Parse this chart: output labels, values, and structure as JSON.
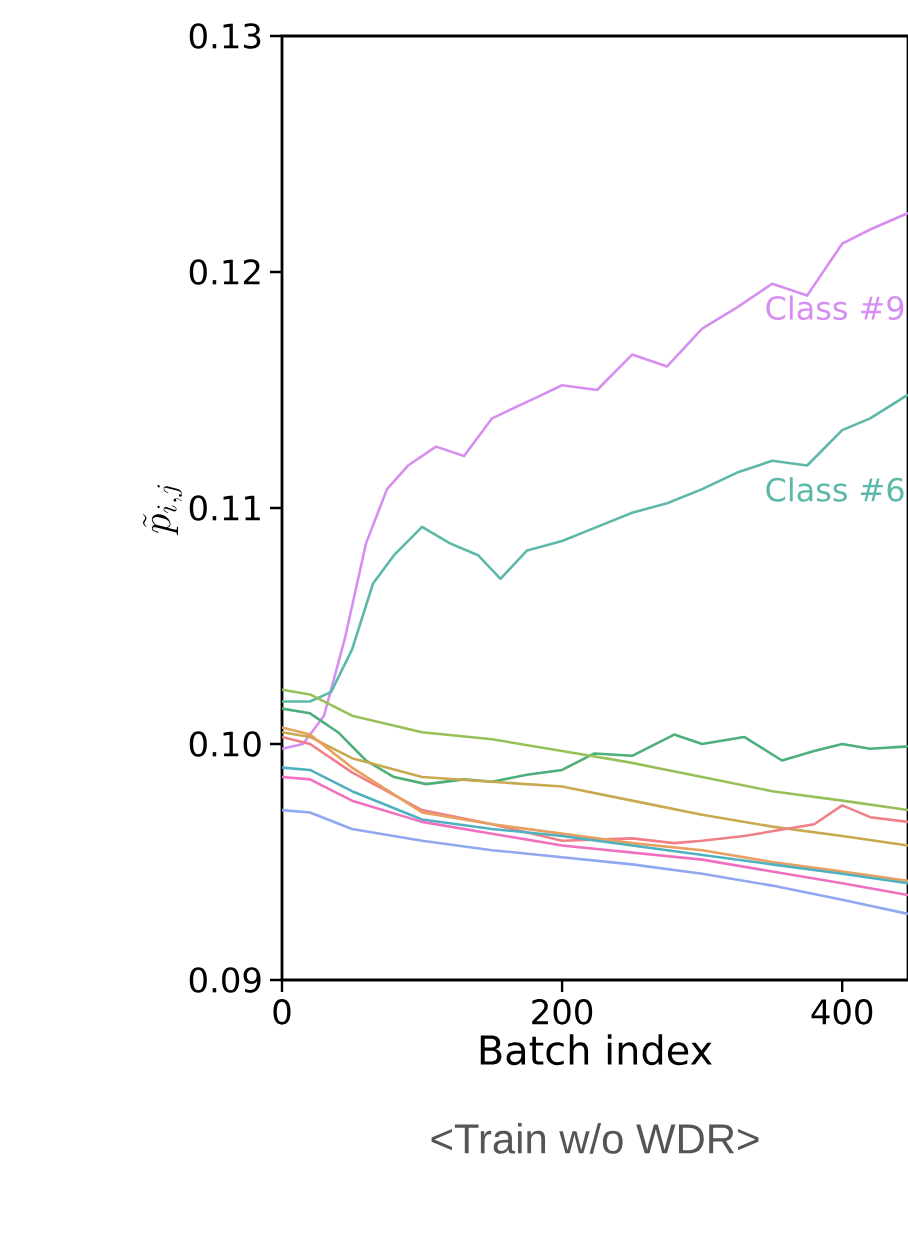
{
  "chart_data": {
    "type": "line",
    "xlabel": "Batch index",
    "ylabel": "\\tilde{p}_{i,j}",
    "annotations": [
      "<Train w/o WDR>"
    ],
    "xlim": [
      0,
      447
    ],
    "ylim": [
      0.09,
      0.13
    ],
    "xticks": [
      0,
      200,
      400
    ],
    "yticks": [
      {
        "value": 0.09,
        "label": "0.09"
      },
      {
        "value": 0.1,
        "label": "0.10"
      },
      {
        "value": 0.11,
        "label": "0.11"
      },
      {
        "value": 0.12,
        "label": "0.12"
      },
      {
        "value": 0.13,
        "label": "0.13"
      }
    ],
    "grid": false,
    "legend": false,
    "marker": "none",
    "line_style": "solid",
    "series": [
      {
        "name": "Class #9",
        "color": "#d68ff0",
        "x": [
          0,
          15,
          30,
          45,
          60,
          75,
          90,
          110,
          130,
          150,
          175,
          200,
          225,
          250,
          275,
          300,
          325,
          350,
          375,
          400,
          420,
          447
        ],
        "values": [
          0.0998,
          0.1,
          0.1012,
          0.1045,
          0.1085,
          0.1108,
          0.1118,
          0.1126,
          0.1122,
          0.1138,
          0.1145,
          0.1152,
          0.115,
          0.1165,
          0.116,
          0.1176,
          0.1185,
          0.1195,
          0.119,
          0.1212,
          0.1218,
          0.1225
        ]
      },
      {
        "name": "Class #6",
        "color": "#5cb8a8",
        "x": [
          0,
          20,
          35,
          50,
          65,
          80,
          100,
          120,
          140,
          156,
          175,
          200,
          225,
          250,
          275,
          300,
          325,
          350,
          375,
          400,
          420,
          447
        ],
        "values": [
          0.1018,
          0.1018,
          0.1022,
          0.104,
          0.1068,
          0.108,
          0.1092,
          0.1085,
          0.108,
          0.107,
          0.1082,
          0.1086,
          0.1092,
          0.1098,
          0.1102,
          0.1108,
          0.1115,
          0.112,
          0.1118,
          0.1133,
          0.1138,
          0.1148
        ]
      },
      {
        "color": "#4daf7a",
        "x": [
          0,
          20,
          40,
          60,
          80,
          103,
          130,
          150,
          175,
          200,
          223,
          250,
          280,
          300,
          330,
          357,
          380,
          400,
          420,
          447
        ],
        "values": [
          0.1015,
          0.1013,
          0.1005,
          0.0993,
          0.0986,
          0.0983,
          0.0985,
          0.0984,
          0.0987,
          0.0989,
          0.0996,
          0.0995,
          0.1004,
          0.1,
          0.1003,
          0.0993,
          0.0997,
          0.1,
          0.0998,
          0.0999
        ]
      },
      {
        "color": "#98c05a",
        "x": [
          0,
          20,
          50,
          100,
          150,
          200,
          250,
          300,
          350,
          400,
          447
        ],
        "values": [
          0.1023,
          0.1021,
          0.1012,
          0.1005,
          0.1002,
          0.0997,
          0.0992,
          0.0986,
          0.098,
          0.0976,
          0.0972
        ]
      },
      {
        "color": "#c9a94f",
        "x": [
          0,
          20,
          50,
          100,
          150,
          200,
          250,
          300,
          350,
          400,
          447
        ],
        "values": [
          0.1005,
          0.1003,
          0.0994,
          0.0986,
          0.0984,
          0.0982,
          0.0976,
          0.097,
          0.0965,
          0.0961,
          0.0957
        ]
      },
      {
        "color": "#f08088",
        "x": [
          0,
          20,
          50,
          100,
          150,
          200,
          250,
          280,
          300,
          330,
          350,
          380,
          400,
          420,
          447
        ],
        "values": [
          0.1003,
          0.1,
          0.0988,
          0.0972,
          0.0966,
          0.0959,
          0.096,
          0.0958,
          0.0959,
          0.0961,
          0.0963,
          0.0966,
          0.0974,
          0.0969,
          0.0967
        ]
      },
      {
        "color": "#e8a060",
        "x": [
          0,
          20,
          50,
          100,
          150,
          200,
          250,
          300,
          350,
          400,
          447
        ],
        "values": [
          0.1007,
          0.1004,
          0.099,
          0.0971,
          0.0966,
          0.0962,
          0.0958,
          0.0955,
          0.095,
          0.0946,
          0.0942
        ]
      },
      {
        "color": "#4fb0c0",
        "x": [
          0,
          20,
          50,
          100,
          150,
          200,
          250,
          300,
          350,
          400,
          447
        ],
        "values": [
          0.099,
          0.0989,
          0.098,
          0.0968,
          0.0964,
          0.0961,
          0.0957,
          0.0953,
          0.0949,
          0.0945,
          0.0941
        ]
      },
      {
        "color": "#f070c0",
        "x": [
          0,
          20,
          50,
          100,
          150,
          200,
          250,
          300,
          350,
          400,
          447
        ],
        "values": [
          0.0986,
          0.0985,
          0.0976,
          0.0967,
          0.0962,
          0.0957,
          0.0954,
          0.0951,
          0.0946,
          0.0941,
          0.0936
        ]
      },
      {
        "color": "#8fa8f0",
        "x": [
          0,
          20,
          50,
          100,
          150,
          200,
          250,
          300,
          350,
          400,
          447
        ],
        "values": [
          0.0972,
          0.0971,
          0.0964,
          0.0959,
          0.0955,
          0.0952,
          0.0949,
          0.0945,
          0.094,
          0.0934,
          0.0928
        ]
      }
    ]
  }
}
